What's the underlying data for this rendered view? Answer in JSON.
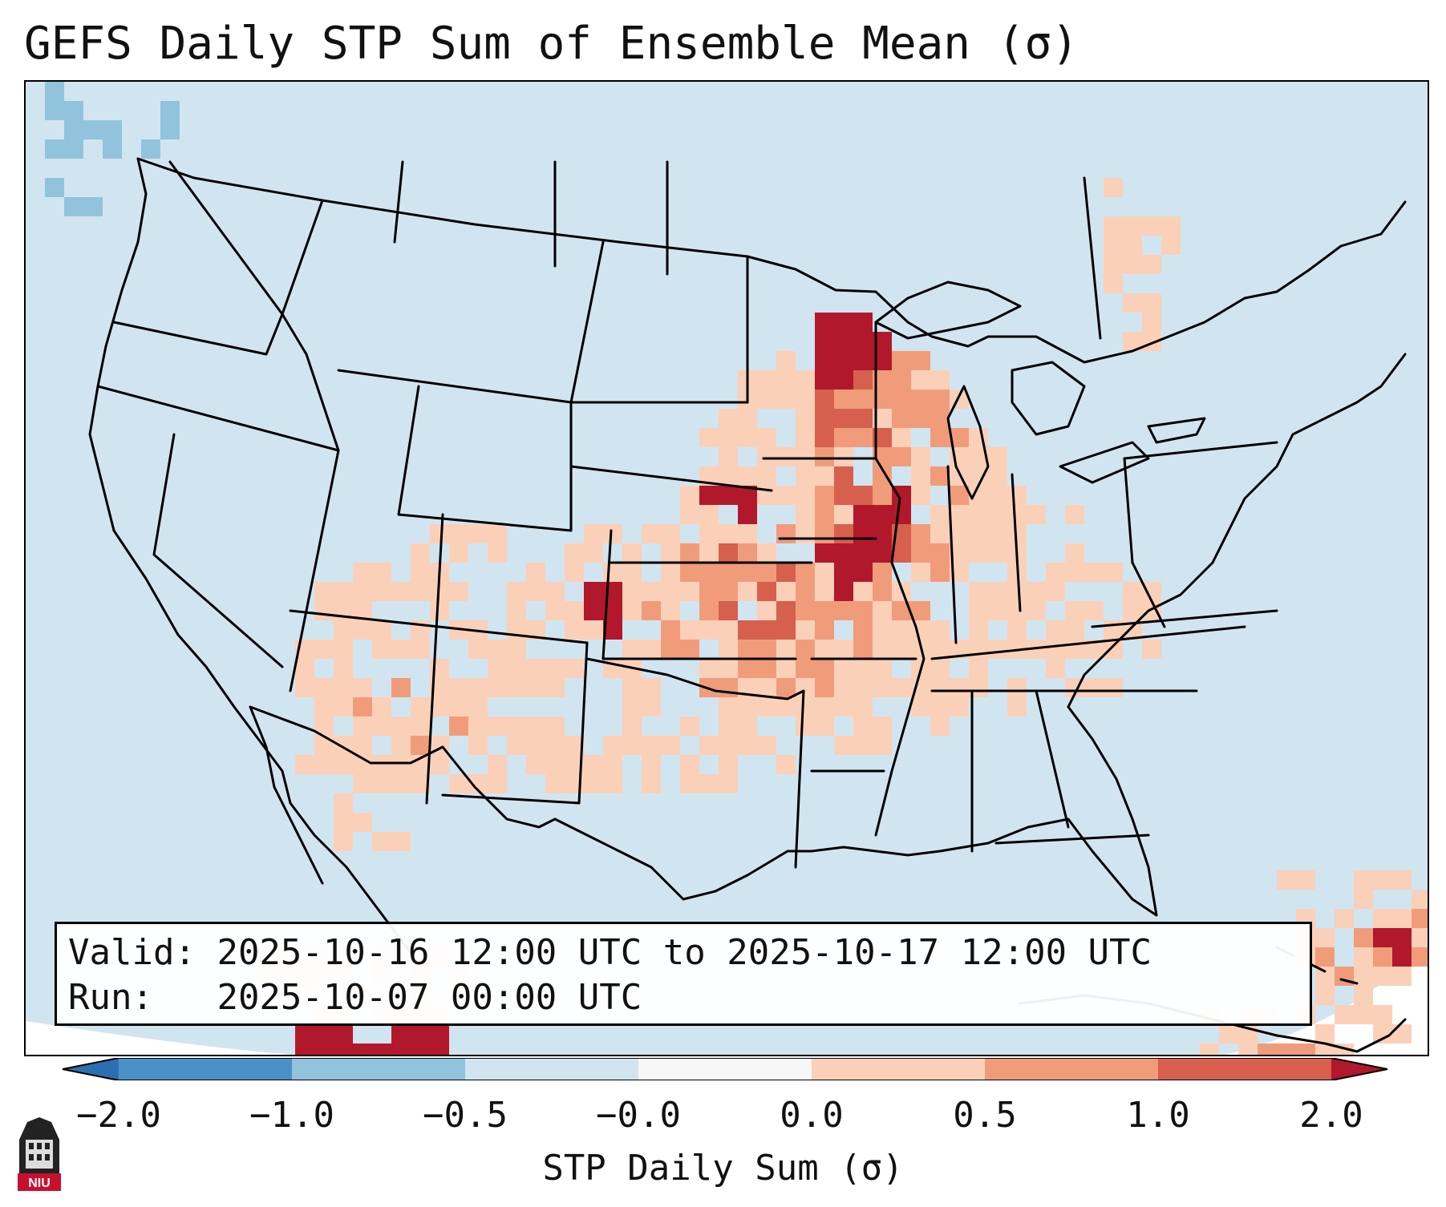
{
  "title": "GEFS Daily STP Sum of Ensemble Mean (σ)",
  "info": {
    "valid_label": "Valid:",
    "valid_text": "2025-10-16 12:00 UTC to 2025-10-17 12:00 UTC",
    "run_label": "Run:",
    "run_text": "2025-10-07 00:00 UTC"
  },
  "colorbar": {
    "label": "STP Daily Sum (σ)",
    "ticks": [
      "−2.0",
      "−1.0",
      "−0.5",
      "−0.0",
      "0.0",
      "0.5",
      "1.0",
      "2.0"
    ],
    "bins": [
      {
        "color": "#2b6fb0"
      },
      {
        "color": "#4a8fc6"
      },
      {
        "color": "#92c3dd"
      },
      {
        "color": "#d1e5f0"
      },
      {
        "color": "#f7f7f7"
      },
      {
        "color": "#fbd0b9"
      },
      {
        "color": "#f09c7b"
      },
      {
        "color": "#d6604d"
      },
      {
        "color": "#b2182b"
      }
    ]
  },
  "colors": {
    "background_land": "#d1e5f0",
    "light_red": "#fbd0b9",
    "mid_red": "#f09c7b",
    "strong_red": "#d6604d",
    "dark_red": "#b2182b",
    "light_blue": "#92c3dd"
  },
  "logo": {
    "text": "NIU",
    "color": "#c8102e"
  }
}
